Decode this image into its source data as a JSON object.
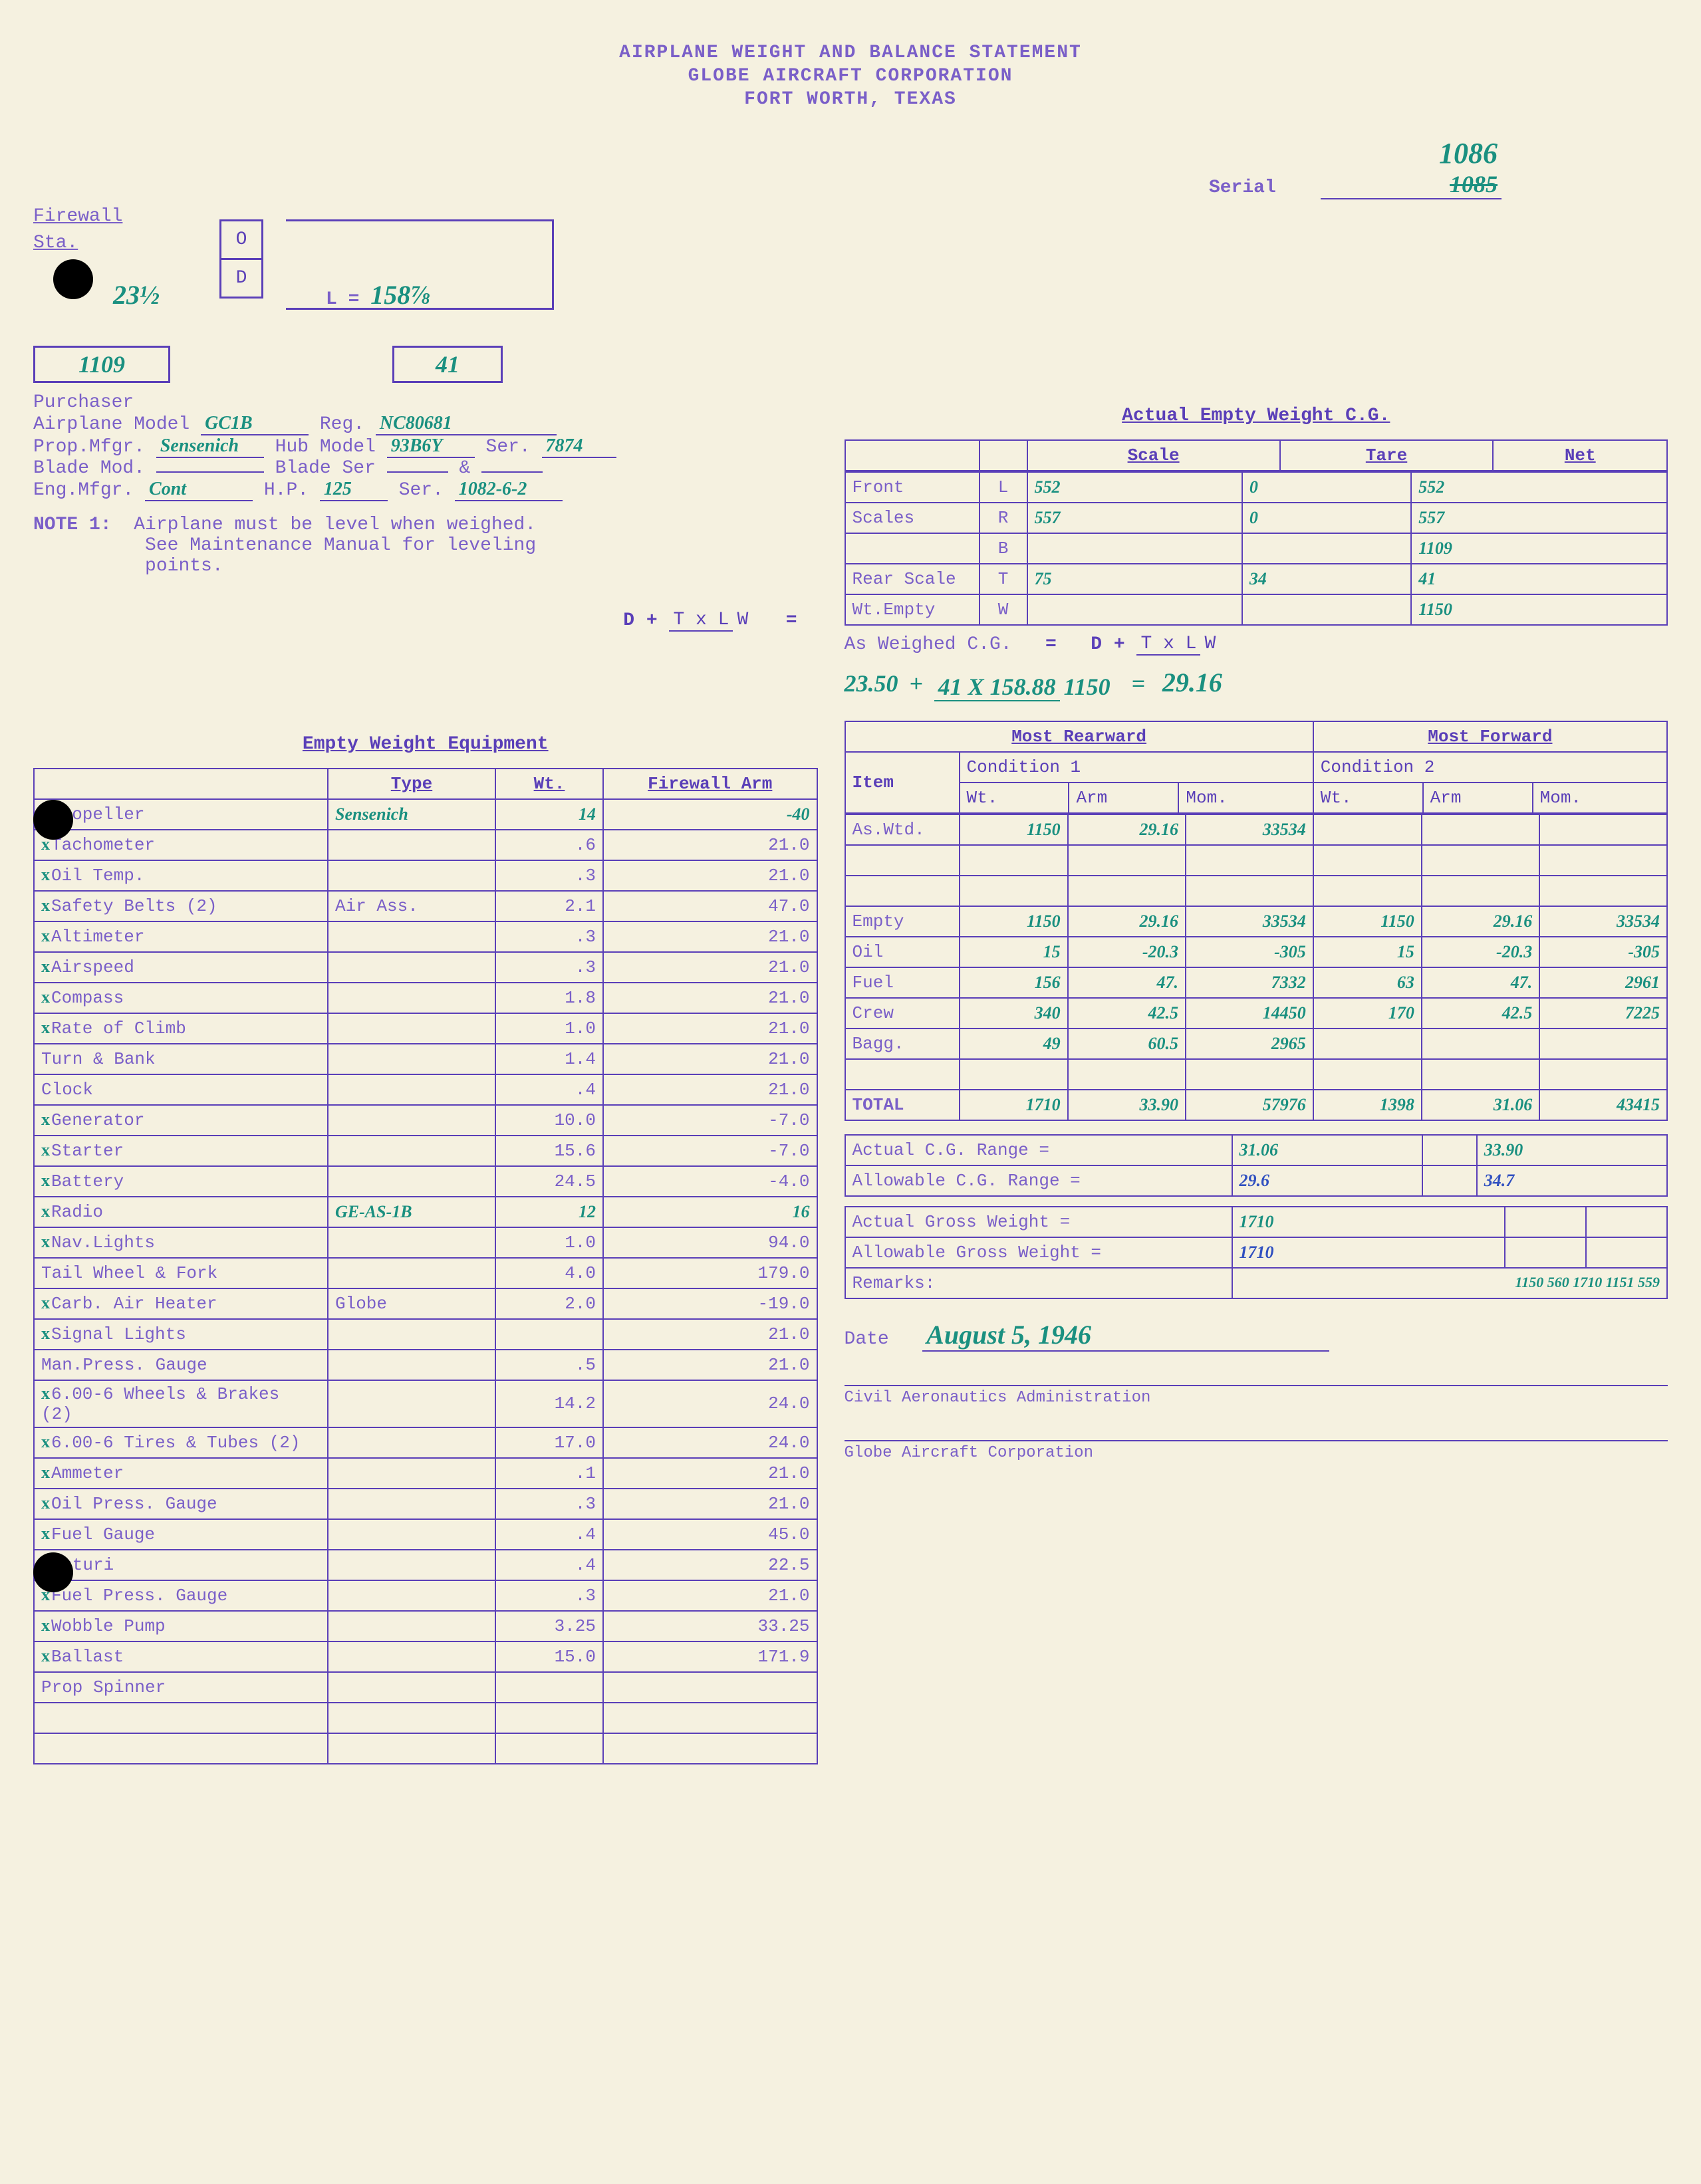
{
  "header": {
    "l1": "AIRPLANE WEIGHT AND BALANCE STATEMENT",
    "l2": "GLOBE AIRCRAFT CORPORATION",
    "l3": "FORT WORTH, TEXAS"
  },
  "serial": {
    "label": "Serial",
    "value": "1086",
    "crossed": "1085"
  },
  "firewall": {
    "label": "Firewall",
    "sta": "Sta.",
    "d_val": "23½",
    "od_o": "O",
    "od_d": "D",
    "L_label": "L =",
    "L_val": "158⅞",
    "box1": "1109",
    "box2": "41"
  },
  "purchaser_label": "Purchaser",
  "info": {
    "airplane_model_l": "Airplane Model",
    "airplane_model": "GC1B",
    "reg_l": "Reg.",
    "reg": "NC80681",
    "prop_l": "Prop.Mfgr.",
    "prop": "Sensenich",
    "hub_l": "Hub Model",
    "hub": "93B6Y",
    "hubser_l": "Ser.",
    "hubser": "7874",
    "blade_l": "Blade Mod.",
    "blade": "",
    "bladeser_l": "Blade Ser",
    "bladeser": "",
    "amp": "&",
    "eng_l": "Eng.Mfgr.",
    "eng": "Cont",
    "hp_l": "H.P.",
    "hp": "125",
    "ser_l": "Ser.",
    "ser": "1082-6-2"
  },
  "note1": {
    "label": "NOTE 1:",
    "t1": "Airplane must be level when weighed.",
    "t2": "See Maintenance Manual for leveling",
    "t3": "points."
  },
  "cg_title": "Actual Empty Weight C.G.",
  "cg_headers": [
    "",
    "",
    "Scale",
    "Tare",
    "Net"
  ],
  "cg_rows": [
    [
      "Front",
      "L",
      "552",
      "0",
      "552"
    ],
    [
      "Scales",
      "R",
      "557",
      "0",
      "557"
    ],
    [
      "",
      "B",
      "",
      "",
      "1109"
    ],
    [
      "Rear Scale",
      "T",
      "75",
      "34",
      "41"
    ],
    [
      "Wt.Empty",
      "W",
      "",
      "",
      "1150"
    ]
  ],
  "cg_formula": {
    "as_weighed": "As Weighed C.G.",
    "eq": "=",
    "d": "D",
    "plus": "+",
    "txlw": "T x L",
    "w": "W",
    "d_val": "23.50",
    "tx": "41 X 158.88",
    "wv": "1150",
    "res": "29.16"
  },
  "equip_title": "Empty Weight Equipment",
  "equip_headers": [
    "",
    "Type",
    "Wt.",
    "Firewall Arm"
  ],
  "equip_rows": [
    {
      "c": true,
      "n": "Propeller",
      "t": "Sensenich",
      "w": "14",
      "a": "-40"
    },
    {
      "c": true,
      "n": "Tachometer",
      "t": "",
      "w": ".6",
      "a": "21.0"
    },
    {
      "c": true,
      "n": "Oil Temp.",
      "t": "",
      "w": ".3",
      "a": "21.0"
    },
    {
      "c": true,
      "n": "Safety Belts (2)",
      "t": "Air Ass.",
      "w": "2.1",
      "a": "47.0"
    },
    {
      "c": true,
      "n": "Altimeter",
      "t": "",
      "w": ".3",
      "a": "21.0"
    },
    {
      "c": true,
      "n": "Airspeed",
      "t": "",
      "w": ".3",
      "a": "21.0"
    },
    {
      "c": true,
      "n": "Compass",
      "t": "",
      "w": "1.8",
      "a": "21.0"
    },
    {
      "c": true,
      "n": "Rate of Climb",
      "t": "",
      "w": "1.0",
      "a": "21.0"
    },
    {
      "c": false,
      "n": "Turn & Bank",
      "t": "",
      "w": "1.4",
      "a": "21.0"
    },
    {
      "c": false,
      "n": "Clock",
      "t": "",
      "w": ".4",
      "a": "21.0"
    },
    {
      "c": true,
      "n": "Generator",
      "t": "",
      "w": "10.0",
      "a": "-7.0"
    },
    {
      "c": true,
      "n": "Starter",
      "t": "",
      "w": "15.6",
      "a": "-7.0"
    },
    {
      "c": true,
      "n": "Battery",
      "t": "",
      "w": "24.5",
      "a": "-4.0"
    },
    {
      "c": true,
      "n": "Radio",
      "t": "GE-AS-1B",
      "w": "12",
      "a": "16"
    },
    {
      "c": true,
      "n": "Nav.Lights",
      "t": "",
      "w": "1.0",
      "a": "94.0"
    },
    {
      "c": false,
      "n": "Tail Wheel & Fork",
      "t": "",
      "w": "4.0",
      "a": "179.0"
    },
    {
      "c": true,
      "n": "Carb. Air Heater",
      "t": "Globe",
      "w": "2.0",
      "a": "-19.0"
    },
    {
      "c": true,
      "n": "Signal Lights",
      "t": "",
      "w": "",
      "a": "21.0"
    },
    {
      "c": false,
      "n": "Man.Press. Gauge",
      "t": "",
      "w": ".5",
      "a": "21.0"
    },
    {
      "c": true,
      "n": "6.00-6 Wheels & Brakes (2)",
      "t": "",
      "w": "14.2",
      "a": "24.0"
    },
    {
      "c": true,
      "n": "6.00-6 Tires & Tubes (2)",
      "t": "",
      "w": "17.0",
      "a": "24.0"
    },
    {
      "c": true,
      "n": "Ammeter",
      "t": "",
      "w": ".1",
      "a": "21.0"
    },
    {
      "c": true,
      "n": "Oil Press. Gauge",
      "t": "",
      "w": ".3",
      "a": "21.0"
    },
    {
      "c": true,
      "n": "Fuel Gauge",
      "t": "",
      "w": ".4",
      "a": "45.0"
    },
    {
      "c": false,
      "n": "Venturi",
      "t": "",
      "w": ".4",
      "a": "22.5"
    },
    {
      "c": true,
      "n": "Fuel Press. Gauge",
      "t": "",
      "w": ".3",
      "a": "21.0"
    },
    {
      "c": true,
      "n": "Wobble Pump",
      "t": "",
      "w": "3.25",
      "a": "33.25"
    },
    {
      "c": true,
      "n": "Ballast",
      "t": "",
      "w": "15.0",
      "a": "171.9"
    },
    {
      "c": false,
      "n": "Prop Spinner",
      "t": "",
      "w": "",
      "a": ""
    },
    {
      "c": false,
      "n": "",
      "t": "",
      "w": "",
      "a": ""
    },
    {
      "c": false,
      "n": "",
      "t": "",
      "w": "",
      "a": ""
    }
  ],
  "cond_hdr": {
    "rear": "Most Rearward",
    "fwd": "Most Forward",
    "item": "Item",
    "c1": "Condition 1",
    "c2": "Condition 2",
    "wt": "Wt.",
    "arm": "Arm",
    "mom": "Mom."
  },
  "cond_rows": [
    [
      "As.Wtd.",
      "1150",
      "29.16",
      "33534",
      "",
      "",
      ""
    ],
    [
      "",
      "",
      "",
      "",
      "",
      "",
      ""
    ],
    [
      "",
      "",
      "",
      "",
      "",
      "",
      ""
    ],
    [
      "Empty",
      "1150",
      "29.16",
      "33534",
      "1150",
      "29.16",
      "33534"
    ],
    [
      "Oil",
      "15",
      "-20.3",
      "-305",
      "15",
      "-20.3",
      "-305"
    ],
    [
      "Fuel",
      "156",
      "47.",
      "7332",
      "63",
      "47.",
      "2961"
    ],
    [
      "Crew",
      "340",
      "42.5",
      "14450",
      "170",
      "42.5",
      "7225"
    ],
    [
      "Bagg.",
      "49",
      "60.5",
      "2965",
      "",
      "",
      ""
    ],
    [
      "",
      "",
      "",
      "",
      "",
      "",
      ""
    ],
    [
      "TOTAL",
      "1710",
      "33.90",
      "57976",
      "1398",
      "31.06",
      "43415"
    ]
  ],
  "ranges": {
    "actual_cg_l": "Actual C.G. Range =",
    "actual_cg_1": "31.06",
    "actual_cg_2": "33.90",
    "allow_cg_l": "Allowable C.G. Range =",
    "allow_cg_1": "29.6",
    "allow_cg_2": "34.7",
    "actual_gw_l": "Actual Gross Weight =",
    "actual_gw": "1710",
    "allow_gw_l": "Allowable Gross Weight =",
    "allow_gw": "1710",
    "remarks_l": "Remarks:",
    "remarks_nums": "1150\n560\n1710\n1151\n559"
  },
  "date_l": "Date",
  "date": "August 5, 1946",
  "sig1": "Civil Aeronautics Administration",
  "sig2": "Globe Aircraft Corporation"
}
